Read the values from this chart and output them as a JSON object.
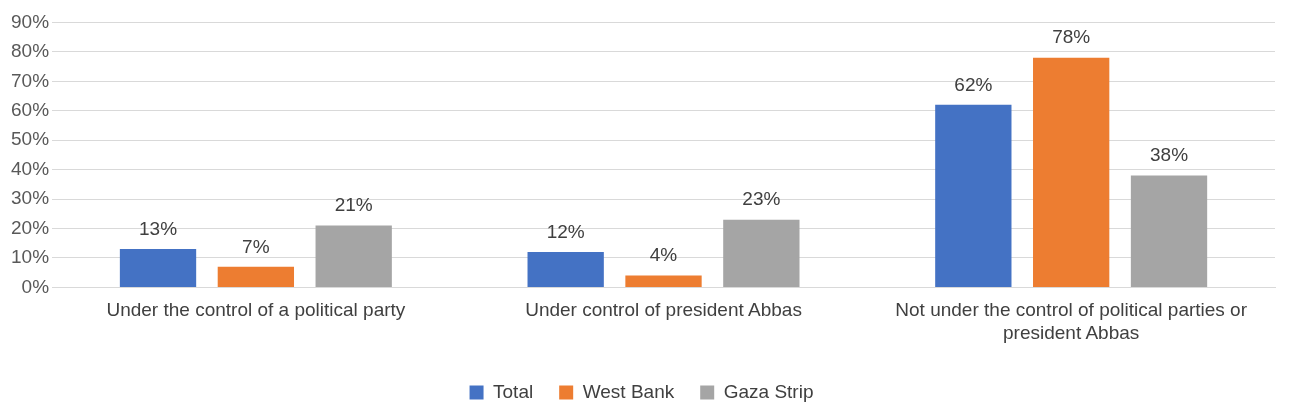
{
  "chart_data": {
    "type": "bar",
    "categories": [
      "Under the control of a political party",
      "Under control of president Abbas",
      "Not under the control of political parties or president Abbas"
    ],
    "series": [
      {
        "name": "Total",
        "color": "#4472c4",
        "values": [
          13,
          12,
          62
        ],
        "value_labels": [
          "13%",
          "12%",
          "62%"
        ]
      },
      {
        "name": "West Bank",
        "color": "#ed7d31",
        "values": [
          7,
          4,
          78
        ],
        "value_labels": [
          "7%",
          "4%",
          "78%"
        ]
      },
      {
        "name": "Gaza Strip",
        "color": "#a5a5a5",
        "values": [
          21,
          23,
          38
        ],
        "value_labels": [
          "21%",
          "23%",
          "38%"
        ]
      }
    ],
    "ylim": [
      0,
      90
    ],
    "yticks": [
      {
        "value": 0,
        "label": "0%"
      },
      {
        "value": 10,
        "label": "10%"
      },
      {
        "value": 20,
        "label": "20%"
      },
      {
        "value": 30,
        "label": "30%"
      },
      {
        "value": 40,
        "label": "40%"
      },
      {
        "value": 50,
        "label": "50%"
      },
      {
        "value": 60,
        "label": "60%"
      },
      {
        "value": 70,
        "label": "70%"
      },
      {
        "value": 80,
        "label": "80%"
      },
      {
        "value": 90,
        "label": "90%"
      }
    ],
    "grid": "y",
    "legend": "bottom"
  }
}
